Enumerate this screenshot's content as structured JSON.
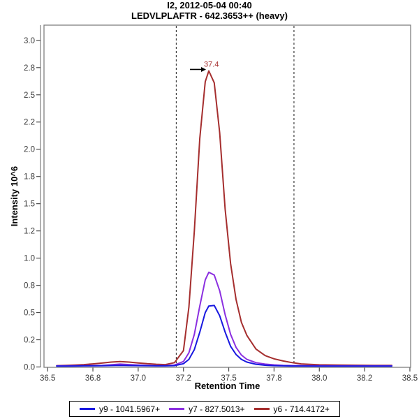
{
  "chart_data": {
    "type": "line",
    "title": "I2, 2012-05-04 00:40",
    "subtitle": "LEDVLPLAFTR - 642.3653++ (heavy)",
    "xlabel": "Retention Time",
    "ylabel": "Intensity 10^6",
    "xlim": [
      36.48,
      38.504
    ],
    "ylim": [
      0,
      3.14
    ],
    "grid": false,
    "legend_position": "bottom",
    "x_ticks": [
      {
        "v": 36.5,
        "label": "36.5"
      },
      {
        "v": 36.75,
        "label": "36.8"
      },
      {
        "v": 37.0,
        "label": "37.0"
      },
      {
        "v": 37.25,
        "label": "37.2"
      },
      {
        "v": 37.5,
        "label": "37.5"
      },
      {
        "v": 37.75,
        "label": "37.8"
      },
      {
        "v": 38.0,
        "label": "38.0"
      },
      {
        "v": 38.25,
        "label": "38.2"
      },
      {
        "v": 38.5,
        "label": "38.5"
      }
    ],
    "y_ticks": [
      {
        "v": 0.0,
        "label": "0.0"
      },
      {
        "v": 0.25,
        "label": "0.2"
      },
      {
        "v": 0.5,
        "label": "0.5"
      },
      {
        "v": 0.75,
        "label": "0.8"
      },
      {
        "v": 1.0,
        "label": "1.0"
      },
      {
        "v": 1.25,
        "label": "1.2"
      },
      {
        "v": 1.5,
        "label": "1.5"
      },
      {
        "v": 1.75,
        "label": "1.8"
      },
      {
        "v": 2.0,
        "label": "2.0"
      },
      {
        "v": 2.25,
        "label": "2.2"
      },
      {
        "v": 2.5,
        "label": "2.5"
      },
      {
        "v": 2.75,
        "label": "2.8"
      },
      {
        "v": 3.0,
        "label": "3.0"
      }
    ],
    "integration_boundaries": [
      37.21,
      37.86
    ],
    "annotation": {
      "text": "37.4",
      "x": 37.39,
      "y": 2.72,
      "color": "#a52e2e"
    },
    "x": [
      36.55,
      36.6,
      36.65,
      36.7,
      36.75,
      36.8,
      36.85,
      36.9,
      36.95,
      37.0,
      37.05,
      37.1,
      37.15,
      37.2,
      37.25,
      37.28,
      37.31,
      37.34,
      37.37,
      37.39,
      37.42,
      37.45,
      37.48,
      37.51,
      37.54,
      37.57,
      37.6,
      37.65,
      37.7,
      37.75,
      37.8,
      37.85,
      37.9,
      38.0,
      38.1,
      38.2,
      38.3,
      38.4
    ],
    "series": [
      {
        "id": "y9",
        "name": "y9 - 1041.5967+",
        "color": "#1818e0",
        "values": [
          0.008,
          0.008,
          0.009,
          0.01,
          0.01,
          0.011,
          0.013,
          0.015,
          0.013,
          0.012,
          0.011,
          0.01,
          0.01,
          0.012,
          0.03,
          0.07,
          0.16,
          0.32,
          0.5,
          0.56,
          0.565,
          0.47,
          0.32,
          0.19,
          0.115,
          0.07,
          0.045,
          0.025,
          0.016,
          0.012,
          0.01,
          0.009,
          0.009,
          0.008,
          0.008,
          0.008,
          0.008,
          0.008
        ]
      },
      {
        "id": "y7",
        "name": "y7 - 827.5013+",
        "color": "#8b2fe0",
        "values": [
          0.01,
          0.01,
          0.011,
          0.012,
          0.013,
          0.015,
          0.02,
          0.026,
          0.022,
          0.017,
          0.014,
          0.012,
          0.012,
          0.018,
          0.05,
          0.13,
          0.3,
          0.56,
          0.8,
          0.87,
          0.845,
          0.7,
          0.48,
          0.3,
          0.18,
          0.11,
          0.07,
          0.04,
          0.026,
          0.019,
          0.015,
          0.013,
          0.012,
          0.011,
          0.01,
          0.01,
          0.01,
          0.01
        ]
      },
      {
        "id": "y6",
        "name": "y6 - 714.4172+",
        "color": "#a52e2e",
        "values": [
          0.012,
          0.014,
          0.017,
          0.022,
          0.028,
          0.036,
          0.045,
          0.05,
          0.045,
          0.037,
          0.03,
          0.025,
          0.022,
          0.04,
          0.15,
          0.55,
          1.25,
          2.1,
          2.62,
          2.72,
          2.61,
          2.15,
          1.45,
          0.95,
          0.62,
          0.41,
          0.29,
          0.165,
          0.105,
          0.075,
          0.055,
          0.04,
          0.028,
          0.02,
          0.017,
          0.016,
          0.015,
          0.014
        ]
      }
    ],
    "colors": {
      "axis": "#7f7f7f",
      "tick": "#4a4a4a",
      "tick_label": "#3a3a3a",
      "boundary_line": "#1a1a1a"
    }
  }
}
